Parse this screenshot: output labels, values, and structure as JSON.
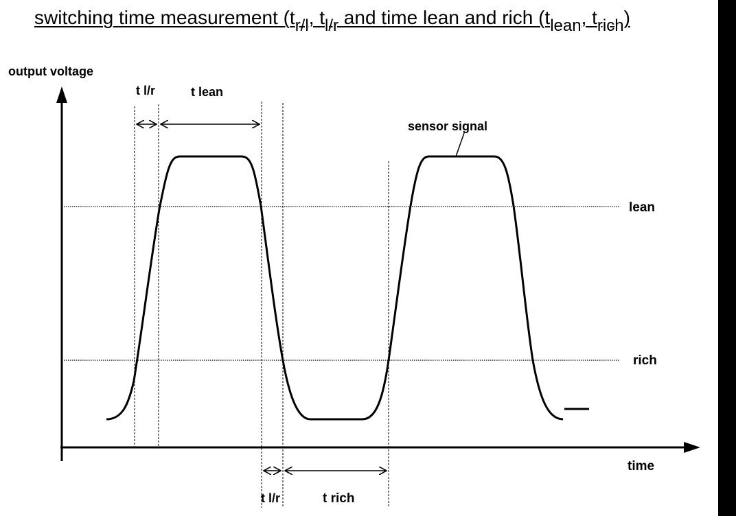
{
  "title": {
    "text1": "switching time measurement (t",
    "sub1": "r/l",
    "text2": ", t",
    "sub2": "l/r",
    "text3": " and time lean and rich (t",
    "sub3": "lean",
    "text4": ", t",
    "sub4": "rich",
    "text5": ")"
  },
  "labels": {
    "y_axis": "output voltage",
    "x_axis": "time",
    "lean_line": "lean",
    "rich_line": "rich",
    "sensor_signal": "sensor signal",
    "t_lr_top": "t l/r",
    "t_lean": "t lean",
    "t_lr_bottom": "t l/r",
    "t_rich": "t rich"
  },
  "colors": {
    "foreground": "#000000",
    "background": "#ffffff"
  }
}
